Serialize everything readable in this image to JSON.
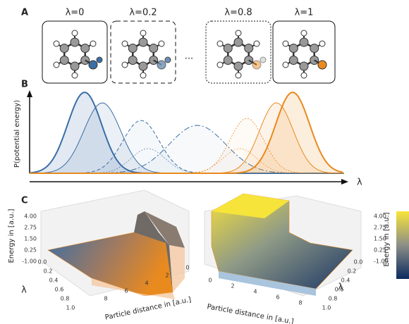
{
  "panels": {
    "a": {
      "label": "A",
      "states": [
        "λ=0",
        "λ=0.2",
        "λ=0.8",
        "λ=1"
      ],
      "ellipsis": "..."
    },
    "b": {
      "label": "B",
      "y_label": "P(potential energy)",
      "x_label": "λ"
    },
    "c": {
      "label": "C",
      "left": {
        "z_label": "Energy in [a.u.]",
        "z_ticks": [
          "4.00",
          "2.75",
          "1.50",
          "0.25",
          "-1.00"
        ],
        "lambda_label": "λ",
        "lambda_ticks": [
          "0.0",
          "0.2",
          "0.4",
          "0.6",
          "0.8",
          "1.0"
        ],
        "x_label": "Particle distance in [a.u.]",
        "x_ticks": [
          "8",
          "6",
          "4",
          "2",
          "0"
        ]
      },
      "right": {
        "z_label": "Energy in [a.u.]",
        "z_ticks": [
          "4.00",
          "2.75",
          "1.50",
          "0.25",
          "-1.00"
        ],
        "lambda_label": "λ",
        "lambda_ticks": [
          "0.0",
          "0.2",
          "0.4",
          "0.6",
          "0.8",
          "1.0"
        ],
        "x_label": "Particle distance in [a.u.]",
        "x_ticks": [
          "0",
          "2",
          "4",
          "6",
          "8"
        ]
      }
    }
  }
}
